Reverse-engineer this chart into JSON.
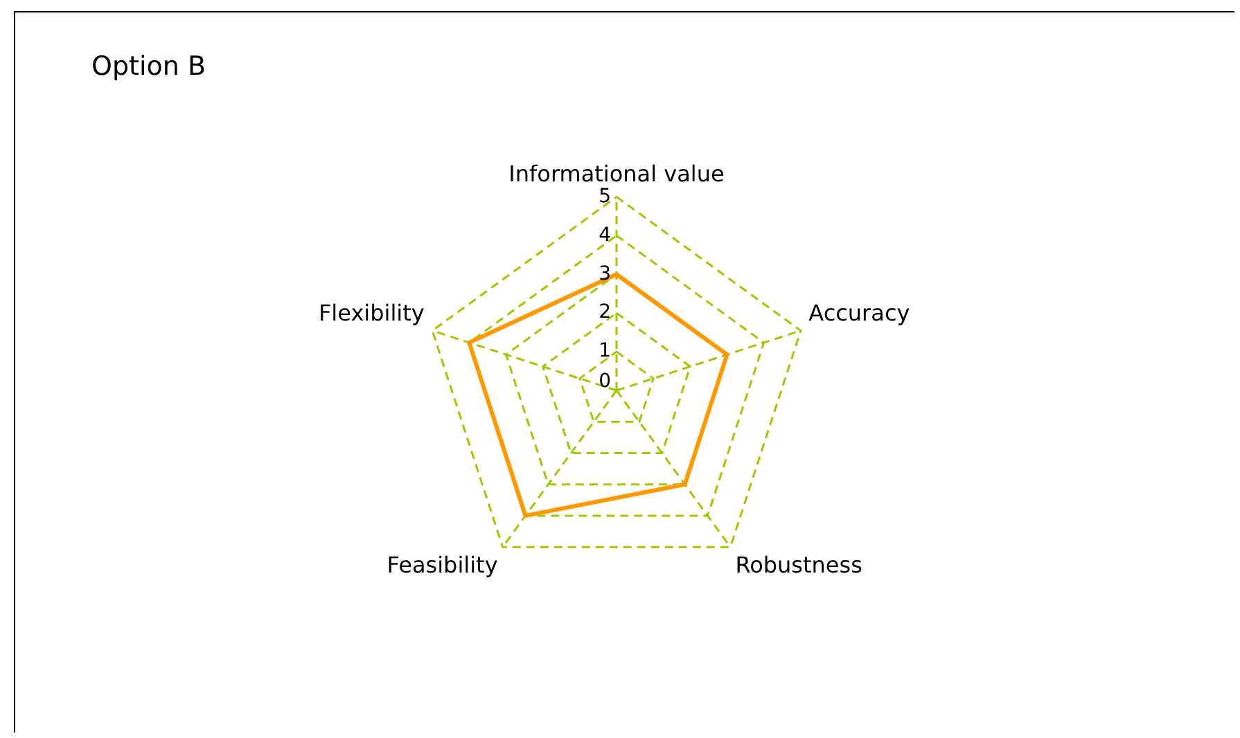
{
  "chart_data": {
    "type": "radar",
    "title": "Option B",
    "categories": [
      "Informational value",
      "Accuracy",
      "Robustness",
      "Feasibility",
      "Flexibility"
    ],
    "series": [
      {
        "color": "#ff9900",
        "values": [
          3,
          3,
          3,
          4,
          4
        ]
      }
    ],
    "ylim": [
      0,
      5
    ],
    "yticks": [
      0,
      1,
      2,
      3,
      4,
      5
    ],
    "grid": true,
    "legend": false,
    "marker": "none",
    "line_style": "solid"
  }
}
